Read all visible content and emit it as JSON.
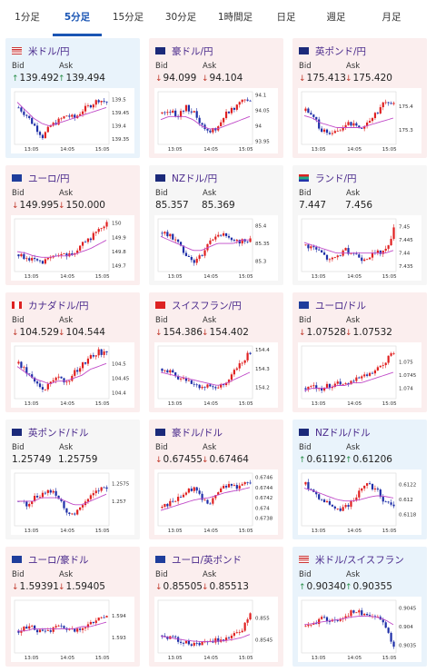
{
  "tabs": [
    {
      "label": "1分足",
      "active": false
    },
    {
      "label": "5分足",
      "active": true
    },
    {
      "label": "15分足",
      "active": false
    },
    {
      "label": "30分足",
      "active": false
    },
    {
      "label": "1時間足",
      "active": false
    },
    {
      "label": "日足",
      "active": false
    },
    {
      "label": "週足",
      "active": false
    },
    {
      "label": "月足",
      "active": false
    }
  ],
  "labels": {
    "bid": "Bid",
    "ask": "Ask"
  },
  "colors": {
    "up_arrow": "#2a8f4a",
    "down_arrow": "#c0392b",
    "bull_candle": "#e02020",
    "bear_candle": "#1f2fa8",
    "ma_line": "#c04ac8",
    "card_up_bg": "#e9f3fb",
    "card_down_bg": "#fbeeee",
    "card_flat_bg": "#f6f6f6"
  },
  "pairs": [
    {
      "name": "米ドル/円",
      "flag": "us",
      "state": "up",
      "bid": "139.492",
      "ask": "139.494",
      "chart_data": {
        "type": "candlestick",
        "x_ticks": [
          "13:05",
          "14:05",
          "15:05"
        ],
        "y_ticks": [
          "139.5",
          "139.45",
          "139.4",
          "139.35"
        ],
        "ylim": [
          139.33,
          139.53
        ],
        "trend": [
          139.47,
          139.44,
          139.4,
          139.36,
          139.4,
          139.42,
          139.44,
          139.43,
          139.46,
          139.48,
          139.5,
          139.49
        ],
        "ma": [
          139.49,
          139.46,
          139.43,
          139.41,
          139.4,
          139.41,
          139.42,
          139.43,
          139.44,
          139.45,
          139.46,
          139.47
        ]
      }
    },
    {
      "name": "豪ドル/円",
      "flag": "au",
      "state": "down",
      "bid": "94.099",
      "ask": "94.104",
      "chart_data": {
        "type": "candlestick",
        "x_ticks": [
          "13:05",
          "14:05",
          "15:05"
        ],
        "y_ticks": [
          "94.1",
          "94.05",
          "94",
          "93.95"
        ],
        "ylim": [
          93.94,
          94.11
        ],
        "trend": [
          94.04,
          94.05,
          94.03,
          94.06,
          94.04,
          94.0,
          93.98,
          94.0,
          94.04,
          94.06,
          94.09,
          94.08
        ],
        "ma": [
          94.02,
          94.03,
          94.03,
          94.03,
          94.02,
          94.0,
          93.99,
          93.99,
          94.0,
          94.01,
          94.02,
          94.03
        ]
      }
    },
    {
      "name": "英ポンド/円",
      "flag": "gb",
      "state": "down",
      "bid": "175.413",
      "ask": "175.420",
      "chart_data": {
        "type": "candlestick",
        "x_ticks": [
          "13:05",
          "14:05",
          "15:05"
        ],
        "y_ticks": [
          "175.4",
          "175.3"
        ],
        "ylim": [
          175.24,
          175.46
        ],
        "trend": [
          175.38,
          175.35,
          175.3,
          175.28,
          175.3,
          175.32,
          175.33,
          175.31,
          175.34,
          175.38,
          175.42,
          175.41
        ],
        "ma": [
          175.36,
          175.35,
          175.33,
          175.32,
          175.31,
          175.31,
          175.31,
          175.31,
          175.32,
          175.33,
          175.34,
          175.35
        ]
      }
    },
    {
      "name": "ユーロ/円",
      "flag": "eu",
      "state": "down",
      "bid": "149.995",
      "ask": "150.000",
      "chart_data": {
        "type": "candlestick",
        "x_ticks": [
          "13:05",
          "14:05",
          "15:05"
        ],
        "y_ticks": [
          "150",
          "149.9",
          "149.8",
          "149.7"
        ],
        "ylim": [
          149.66,
          150.03
        ],
        "trend": [
          149.78,
          149.76,
          149.73,
          149.72,
          149.75,
          149.78,
          149.77,
          149.8,
          149.85,
          149.9,
          149.96,
          150.0
        ],
        "ma": [
          149.8,
          149.79,
          149.77,
          149.76,
          149.76,
          149.77,
          149.77,
          149.78,
          149.8,
          149.82,
          149.85,
          149.88
        ]
      }
    },
    {
      "name": "NZドル/円",
      "flag": "nz",
      "state": "flat",
      "bid": "85.357",
      "ask": "85.369",
      "chart_data": {
        "type": "candlestick",
        "x_ticks": [
          "13:05",
          "14:05",
          "15:05"
        ],
        "y_ticks": [
          "85.4",
          "85.35",
          "85.3"
        ],
        "ylim": [
          85.27,
          85.42
        ],
        "trend": [
          85.38,
          85.37,
          85.35,
          85.32,
          85.3,
          85.32,
          85.36,
          85.38,
          85.37,
          85.35,
          85.36,
          85.36
        ],
        "ma": [
          85.37,
          85.36,
          85.35,
          85.34,
          85.33,
          85.33,
          85.34,
          85.35,
          85.35,
          85.35,
          85.36,
          85.36
        ]
      }
    },
    {
      "name": "ランド/円",
      "flag": "za",
      "state": "flat",
      "bid": "7.447",
      "ask": "7.456",
      "chart_data": {
        "type": "candlestick",
        "x_ticks": [
          "13:05",
          "14:05",
          "15:05"
        ],
        "y_ticks": [
          "7.45",
          "7.445",
          "7.44",
          "7.435"
        ],
        "ylim": [
          7.433,
          7.453
        ],
        "trend": [
          7.443,
          7.442,
          7.44,
          7.437,
          7.439,
          7.441,
          7.44,
          7.438,
          7.439,
          7.44,
          7.441,
          7.449
        ],
        "ma": [
          7.444,
          7.443,
          7.442,
          7.441,
          7.44,
          7.44,
          7.44,
          7.44,
          7.44,
          7.44,
          7.44,
          7.441
        ]
      }
    },
    {
      "name": "カナダドル/円",
      "flag": "ca",
      "state": "down",
      "bid": "104.529",
      "ask": "104.544",
      "chart_data": {
        "type": "candlestick",
        "x_ticks": [
          "13:05",
          "14:05",
          "15:05"
        ],
        "y_ticks": [
          "104.5",
          "104.45",
          "104.4"
        ],
        "ylim": [
          104.38,
          104.56
        ],
        "trend": [
          104.5,
          104.47,
          104.44,
          104.41,
          104.43,
          104.45,
          104.44,
          104.47,
          104.5,
          104.52,
          104.54,
          104.53
        ],
        "ma": [
          104.49,
          104.47,
          104.45,
          104.44,
          104.43,
          104.44,
          104.44,
          104.45,
          104.46,
          104.48,
          104.49,
          104.5
        ]
      }
    },
    {
      "name": "スイスフラン/円",
      "flag": "ch",
      "state": "down",
      "bid": "154.386",
      "ask": "154.402",
      "chart_data": {
        "type": "candlestick",
        "x_ticks": [
          "13:05",
          "14:05",
          "15:05"
        ],
        "y_ticks": [
          "154.4",
          "154.3",
          "154.2"
        ],
        "ylim": [
          154.14,
          154.42
        ],
        "trend": [
          154.3,
          154.28,
          154.25,
          154.24,
          154.22,
          154.2,
          154.21,
          154.19,
          154.23,
          154.28,
          154.34,
          154.39
        ],
        "ma": [
          154.28,
          154.27,
          154.26,
          154.25,
          154.24,
          154.23,
          154.22,
          154.21,
          154.22,
          154.24,
          154.26,
          154.28
        ]
      }
    },
    {
      "name": "ユーロ/ドル",
      "flag": "eu-us",
      "state": "down",
      "bid": "1.07528",
      "ask": "1.07532",
      "chart_data": {
        "type": "candlestick",
        "x_ticks": [
          "13:05",
          "14:05",
          "15:05"
        ],
        "y_ticks": [
          "1.075",
          "1.0745",
          "1.074"
        ],
        "ylim": [
          1.0736,
          1.0756
        ],
        "trend": [
          1.074,
          1.0741,
          1.074,
          1.0741,
          1.0742,
          1.0742,
          1.0743,
          1.0744,
          1.0745,
          1.0747,
          1.075,
          1.0754
        ],
        "ma": [
          1.0739,
          1.074,
          1.074,
          1.074,
          1.0741,
          1.0741,
          1.0742,
          1.0742,
          1.0743,
          1.0744,
          1.0745,
          1.0746
        ]
      }
    },
    {
      "name": "英ポンド/ドル",
      "flag": "gb-us",
      "state": "flat",
      "bid": "1.25749",
      "ask": "1.25759",
      "chart_data": {
        "type": "candlestick",
        "x_ticks": [
          "13:05",
          "14:05",
          "15:05"
        ],
        "y_ticks": [
          "1.2575",
          "1.257"
        ],
        "ylim": [
          1.2563,
          1.2578
        ],
        "trend": [
          1.257,
          1.2569,
          1.2571,
          1.2572,
          1.2573,
          1.2571,
          1.2567,
          1.2566,
          1.2569,
          1.2571,
          1.2573,
          1.2574
        ],
        "ma": [
          1.257,
          1.257,
          1.257,
          1.2571,
          1.2571,
          1.2571,
          1.257,
          1.2569,
          1.2569,
          1.257,
          1.2571,
          1.2572
        ]
      }
    },
    {
      "name": "豪ドル/ドル",
      "flag": "au-us",
      "state": "down",
      "bid": "0.67455",
      "ask": "0.67464",
      "chart_data": {
        "type": "candlestick",
        "x_ticks": [
          "13:05",
          "14:05",
          "15:05"
        ],
        "y_ticks": [
          "0.6746",
          "0.6744",
          "0.6742",
          "0.674",
          "0.6738"
        ],
        "ylim": [
          0.67365,
          0.67468
        ],
        "trend": [
          0.674,
          0.6741,
          0.6742,
          0.6743,
          0.6744,
          0.6742,
          0.6741,
          0.6743,
          0.67445,
          0.6744,
          0.67445,
          0.6745
        ],
        "ma": [
          0.67395,
          0.674,
          0.67405,
          0.6741,
          0.67415,
          0.67418,
          0.6742,
          0.67425,
          0.6743,
          0.67433,
          0.67436,
          0.6744
        ]
      }
    },
    {
      "name": "NZドル/ドル",
      "flag": "nz-us",
      "state": "up",
      "bid": "0.61192",
      "ask": "0.61206",
      "chart_data": {
        "type": "candlestick",
        "x_ticks": [
          "13:05",
          "14:05",
          "15:05"
        ],
        "y_ticks": [
          "0.6122",
          "0.612",
          "0.6118"
        ],
        "ylim": [
          0.61165,
          0.61235
        ],
        "trend": [
          0.6122,
          0.6121,
          0.612,
          0.61195,
          0.61185,
          0.6119,
          0.612,
          0.61215,
          0.6122,
          0.6121,
          0.61195,
          0.61192
        ],
        "ma": [
          0.61215,
          0.61212,
          0.61208,
          0.61204,
          0.612,
          0.61198,
          0.61198,
          0.612,
          0.61203,
          0.61205,
          0.61204,
          0.61202
        ]
      }
    },
    {
      "name": "ユーロ/豪ドル",
      "flag": "eu-au",
      "state": "down",
      "bid": "1.59391",
      "ask": "1.59405",
      "chart_data": {
        "type": "candlestick",
        "x_ticks": [
          "13:05",
          "14:05",
          "15:05"
        ],
        "y_ticks": [
          "1.594",
          "1.593"
        ],
        "ylim": [
          1.5923,
          1.5947
        ],
        "trend": [
          1.5933,
          1.5935,
          1.5934,
          1.5932,
          1.5933,
          1.5935,
          1.5934,
          1.5933,
          1.5935,
          1.5936,
          1.5938,
          1.594
        ],
        "ma": [
          1.5933,
          1.5933,
          1.5934,
          1.5934,
          1.5934,
          1.5934,
          1.5934,
          1.5934,
          1.5935,
          1.5935,
          1.5936,
          1.5937
        ]
      }
    },
    {
      "name": "ユーロ/英ポンド",
      "flag": "eu-gb",
      "state": "down",
      "bid": "0.85505",
      "ask": "0.85513",
      "chart_data": {
        "type": "candlestick",
        "x_ticks": [
          "13:05",
          "14:05",
          "15:05"
        ],
        "y_ticks": [
          "0.855",
          "0.8545"
        ],
        "ylim": [
          0.8542,
          0.8554
        ],
        "trend": [
          0.8546,
          0.85455,
          0.8545,
          0.85445,
          0.8544,
          0.85445,
          0.8545,
          0.85448,
          0.85452,
          0.8546,
          0.85475,
          0.8551
        ],
        "ma": [
          0.85458,
          0.85455,
          0.85452,
          0.85449,
          0.85447,
          0.85446,
          0.85446,
          0.85447,
          0.85448,
          0.85451,
          0.85455,
          0.85462
        ]
      }
    },
    {
      "name": "米ドル/スイスフラン",
      "flag": "us-ch",
      "state": "up",
      "bid": "0.90340",
      "ask": "0.90355",
      "chart_data": {
        "type": "candlestick",
        "x_ticks": [
          "13:05",
          "14:05",
          "15:05"
        ],
        "y_ticks": [
          "0.9045",
          "0.904",
          "0.9035"
        ],
        "ylim": [
          0.9033,
          0.9047
        ],
        "trend": [
          0.904,
          0.9041,
          0.9042,
          0.90415,
          0.9042,
          0.9043,
          0.9044,
          0.90435,
          0.9043,
          0.9042,
          0.904,
          0.90345
        ],
        "ma": [
          0.90405,
          0.90408,
          0.90412,
          0.90415,
          0.90418,
          0.90422,
          0.90426,
          0.90428,
          0.90428,
          0.90425,
          0.90418,
          0.90405
        ]
      }
    }
  ]
}
